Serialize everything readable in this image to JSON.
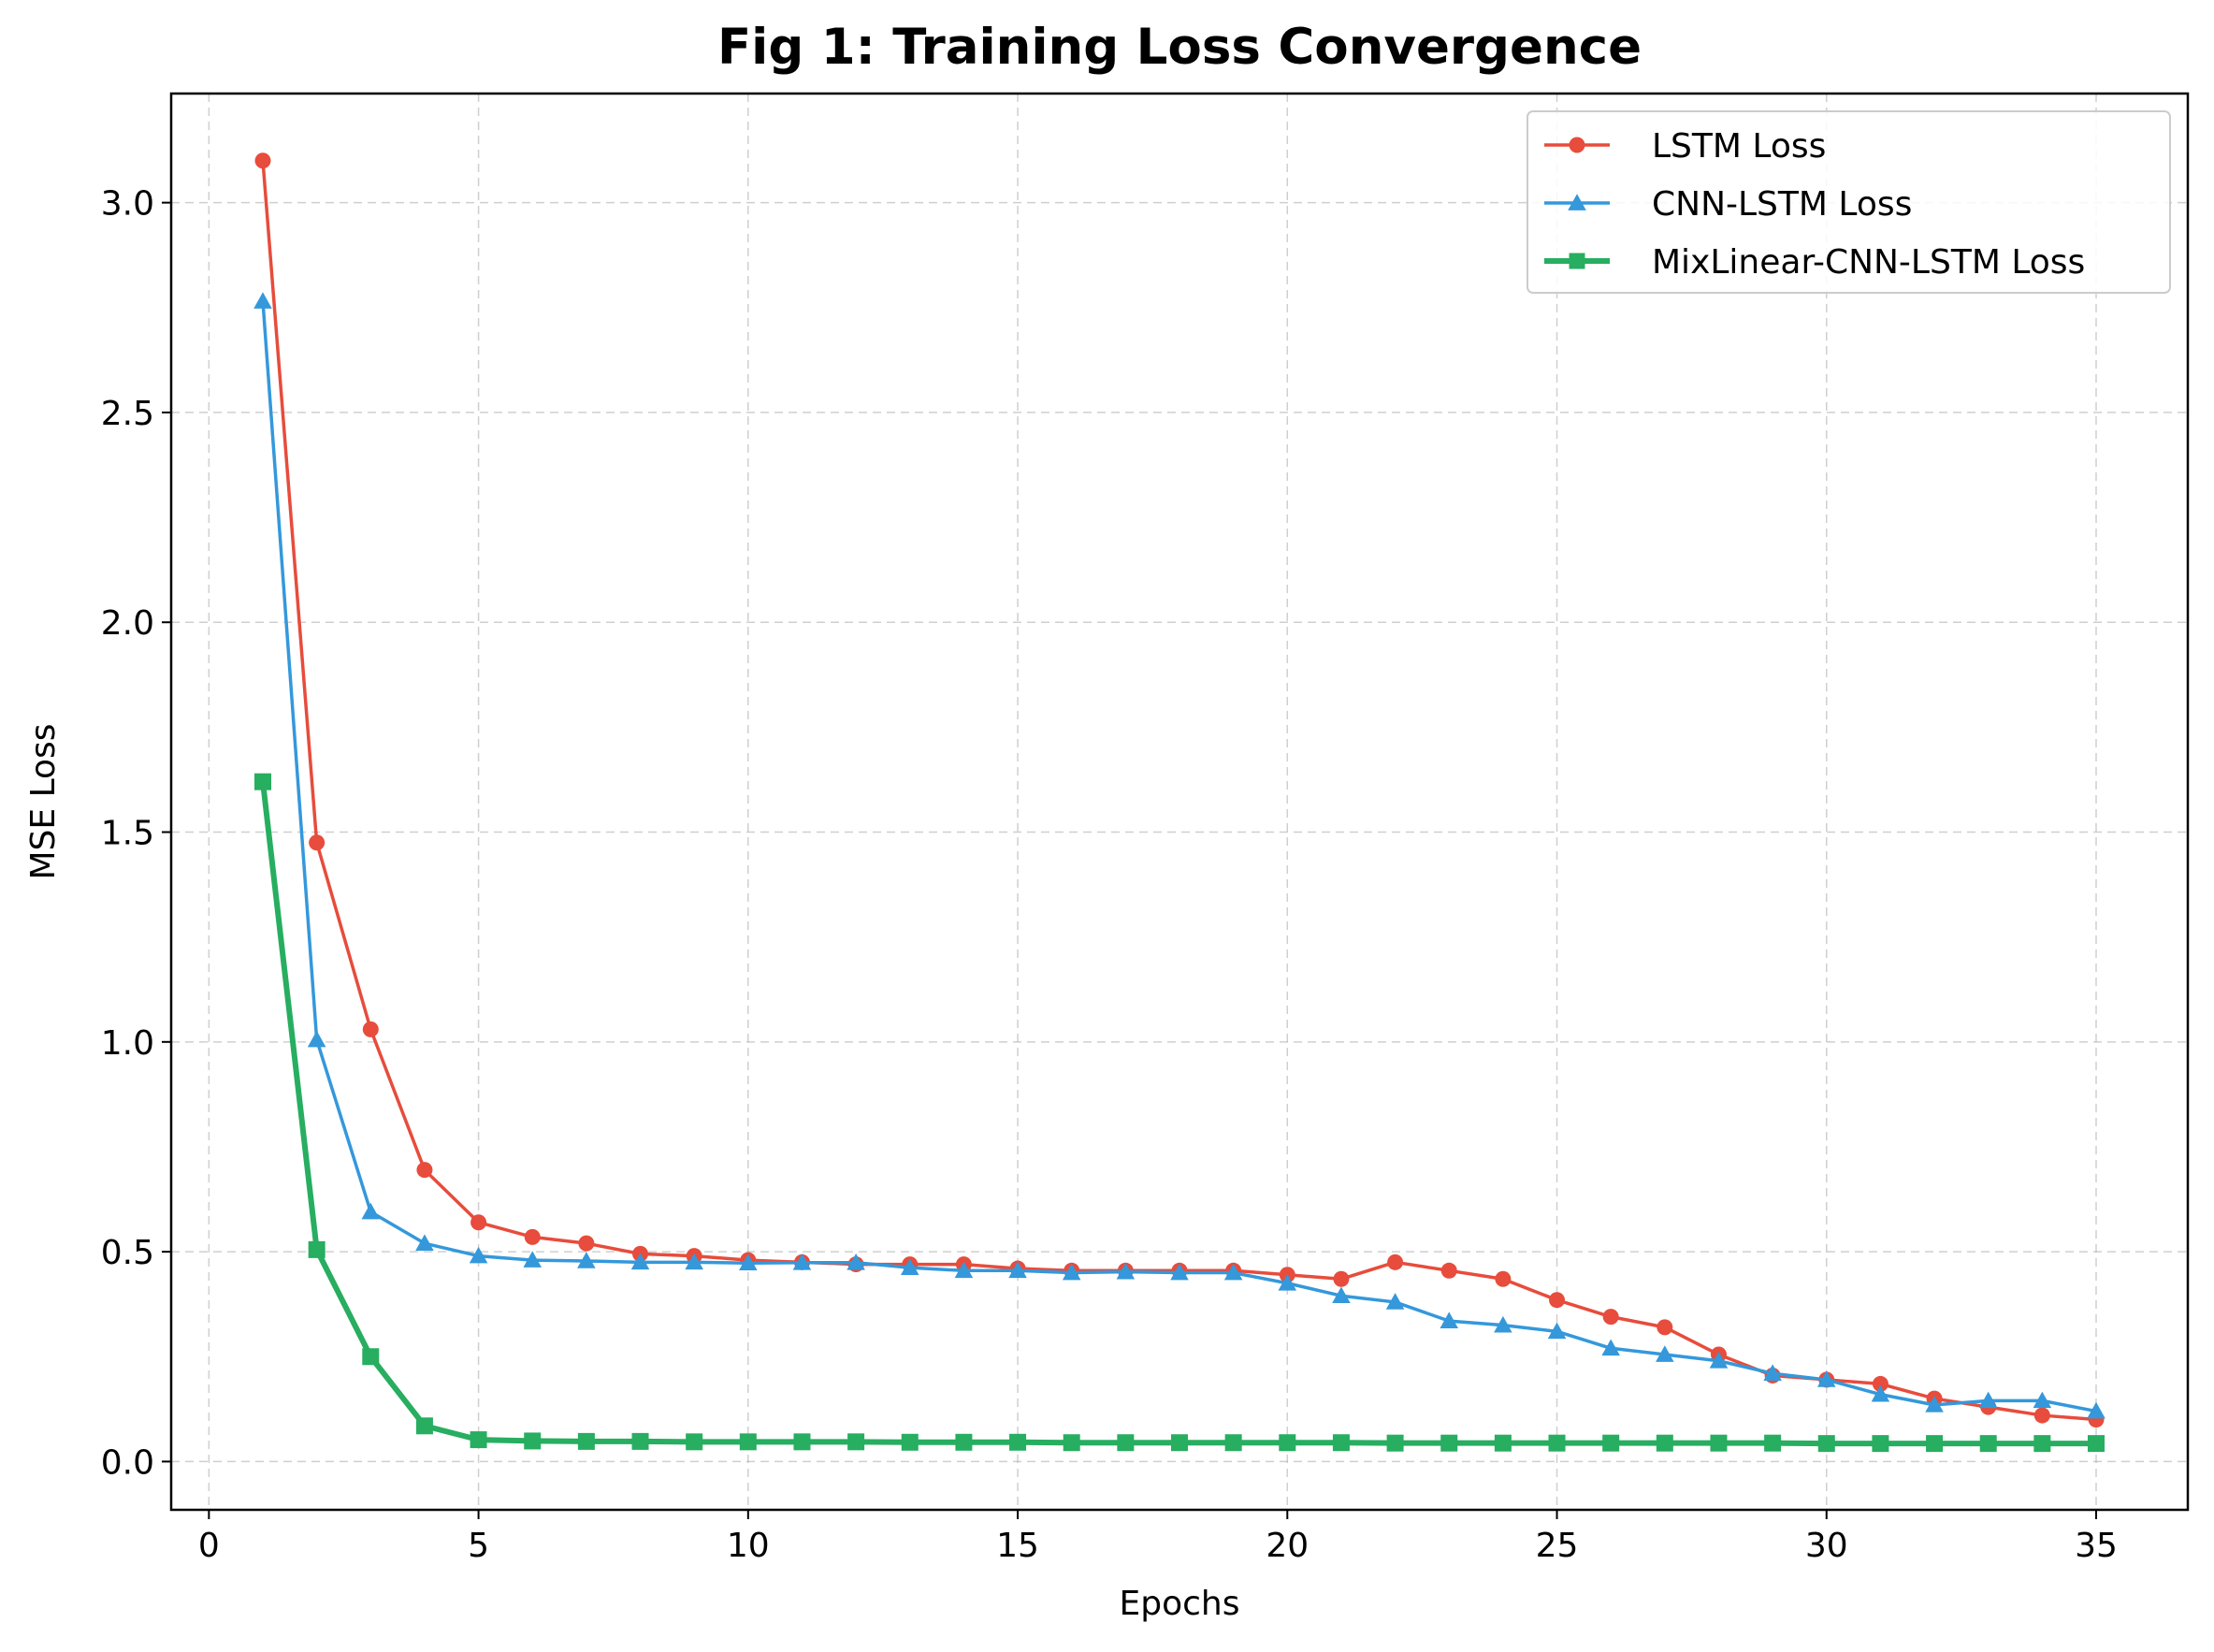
{
  "chart_data": {
    "type": "line",
    "title": "Fig 1: Training Loss Convergence",
    "xlabel": "Epochs",
    "ylabel": "MSE Loss",
    "xlim": [
      -0.7,
      36.7
    ],
    "ylim": [
      -0.115,
      3.26
    ],
    "xticks": [
      0,
      5,
      10,
      15,
      20,
      25,
      30,
      35
    ],
    "xtick_labels": [
      "0",
      "5",
      "10",
      "15",
      "20",
      "25",
      "30",
      "35"
    ],
    "yticks": [
      0.0,
      0.5,
      1.0,
      1.5,
      2.0,
      2.5,
      3.0
    ],
    "ytick_labels": [
      "0.0",
      "0.5",
      "1.0",
      "1.5",
      "2.0",
      "2.5",
      "3.0"
    ],
    "grid": true,
    "legend_position": "top-right",
    "x": [
      1,
      2,
      3,
      4,
      5,
      6,
      7,
      8,
      9,
      10,
      11,
      12,
      13,
      14,
      15,
      16,
      17,
      18,
      19,
      20,
      21,
      22,
      23,
      24,
      25,
      26,
      27,
      28,
      29,
      30,
      31,
      32,
      33,
      34,
      35
    ],
    "series": [
      {
        "name": "LSTM Loss",
        "color": "#e74c3c",
        "marker": "circle",
        "line_width": "normal",
        "values": [
          3.1,
          1.475,
          1.03,
          0.695,
          0.57,
          0.535,
          0.52,
          0.495,
          0.49,
          0.48,
          0.475,
          0.47,
          0.47,
          0.47,
          0.46,
          0.455,
          0.455,
          0.455,
          0.455,
          0.445,
          0.435,
          0.475,
          0.455,
          0.435,
          0.385,
          0.345,
          0.32,
          0.255,
          0.205,
          0.195,
          0.185,
          0.15,
          0.13,
          0.11,
          0.1
        ]
      },
      {
        "name": "CNN-LSTM Loss",
        "color": "#3498db",
        "marker": "triangle",
        "line_width": "normal",
        "values": [
          2.765,
          1.005,
          0.595,
          0.52,
          0.49,
          0.48,
          0.478,
          0.475,
          0.475,
          0.473,
          0.474,
          0.474,
          0.462,
          0.455,
          0.455,
          0.45,
          0.452,
          0.45,
          0.45,
          0.425,
          0.395,
          0.38,
          0.335,
          0.325,
          0.31,
          0.27,
          0.255,
          0.24,
          0.21,
          0.195,
          0.16,
          0.135,
          0.145,
          0.145,
          0.12
        ]
      },
      {
        "name": "MixLinear-CNN-LSTM Loss",
        "color": "#27ae60",
        "marker": "square",
        "line_width": "thick",
        "values": [
          1.62,
          0.505,
          0.25,
          0.085,
          0.052,
          0.049,
          0.048,
          0.048,
          0.047,
          0.047,
          0.047,
          0.047,
          0.046,
          0.046,
          0.046,
          0.045,
          0.045,
          0.045,
          0.045,
          0.045,
          0.045,
          0.044,
          0.044,
          0.044,
          0.044,
          0.044,
          0.044,
          0.044,
          0.044,
          0.043,
          0.043,
          0.043,
          0.043,
          0.043,
          0.043
        ]
      }
    ]
  }
}
